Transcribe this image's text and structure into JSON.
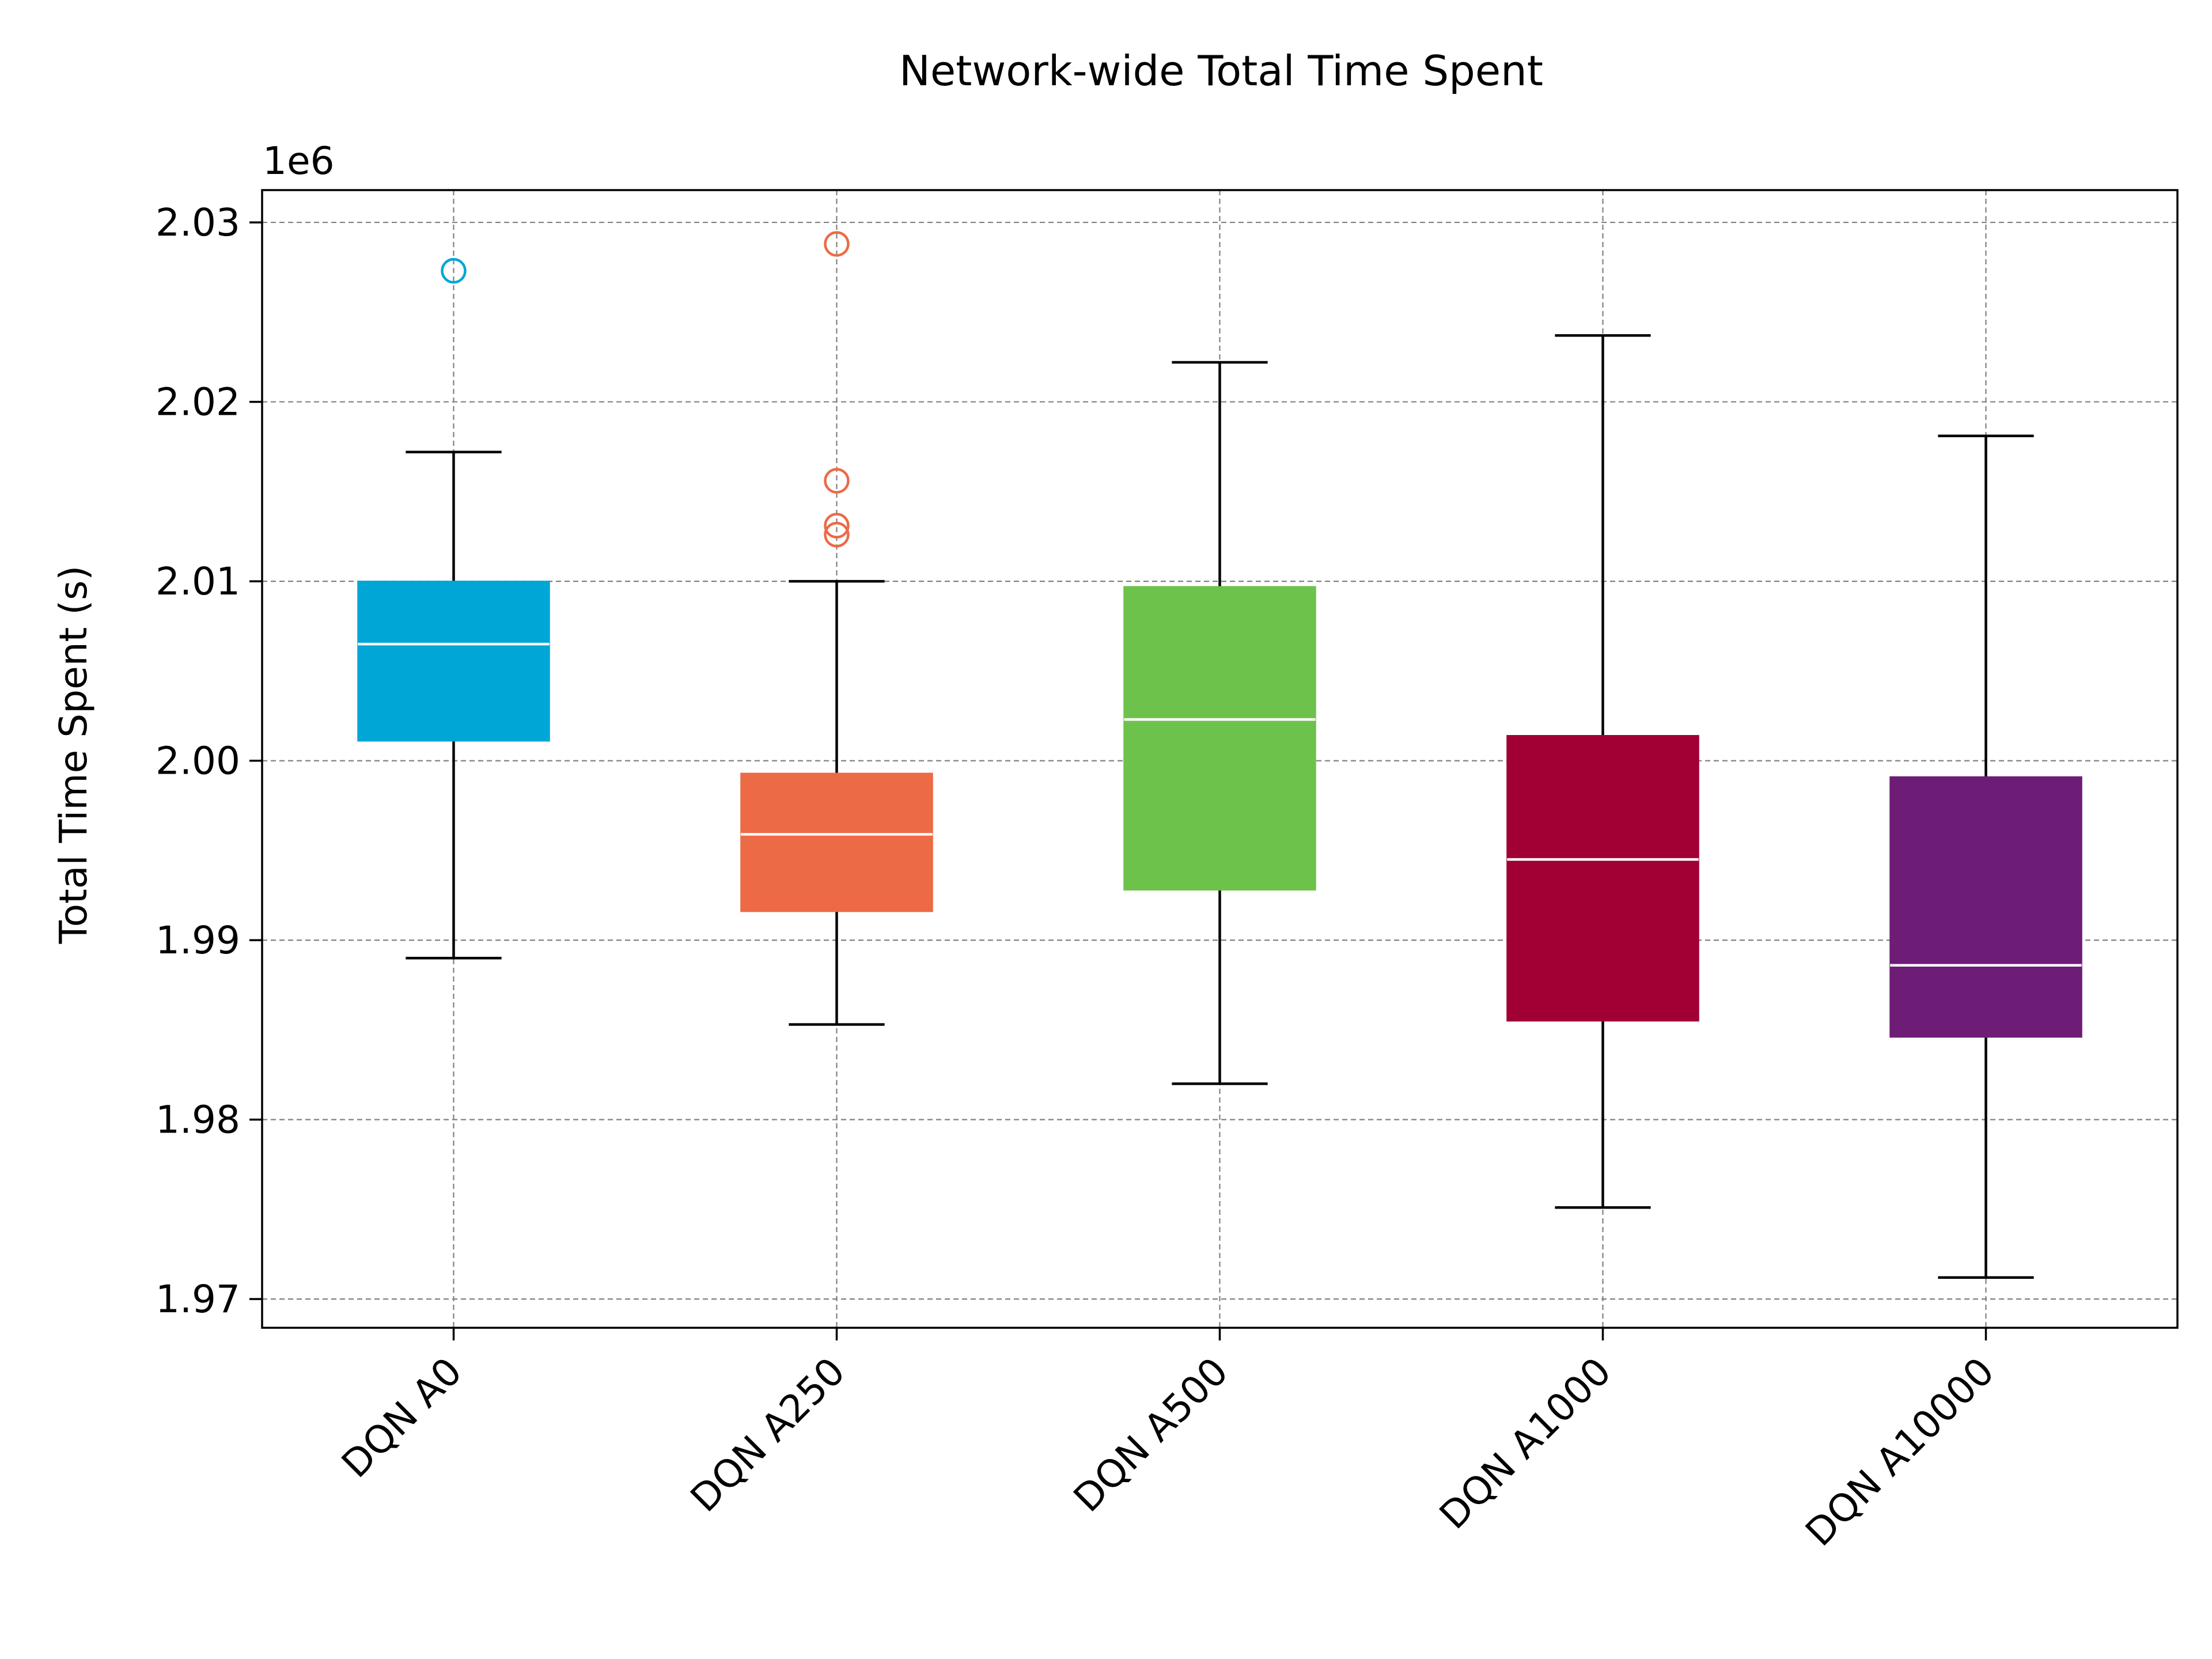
{
  "chart_data": {
    "type": "box",
    "title": "Network-wide Total Time Spent",
    "xlabel": "",
    "ylabel": "Total Time Spent (s)",
    "y_multiplier_label": "1e6",
    "y_scale": 1000000,
    "ylim": [
      1.9684,
      2.0318
    ],
    "yticks": [
      1.97,
      1.98,
      1.99,
      2.0,
      2.01,
      2.02,
      2.03
    ],
    "ytick_labels": [
      "1.97",
      "1.98",
      "1.99",
      "2.00",
      "2.01",
      "2.02",
      "2.03"
    ],
    "grid": true,
    "categories": [
      "DQN A0",
      "DQN A250",
      "DQN A500",
      "DQN A1000",
      "DQN A10000"
    ],
    "boxes": [
      {
        "color": "#00a6d6",
        "whisker_low": 1.989,
        "q1": 2.0011,
        "median": 2.0065,
        "q3": 2.01,
        "whisker_high": 2.0172,
        "outliers": [
          2.0273
        ]
      },
      {
        "color": "#ec6a46",
        "whisker_low": 1.9853,
        "q1": 1.9916,
        "median": 1.9959,
        "q3": 1.9993,
        "whisker_high": 2.01,
        "outliers": [
          2.0288,
          2.0156,
          2.0131,
          2.0126
        ]
      },
      {
        "color": "#6dc24b",
        "whisker_low": 1.982,
        "q1": 1.9928,
        "median": 2.0023,
        "q3": 2.0097,
        "whisker_high": 2.0222,
        "outliers": []
      },
      {
        "color": "#a00034",
        "whisker_low": 1.9751,
        "q1": 1.9855,
        "median": 1.9945,
        "q3": 2.0014,
        "whisker_high": 2.0237,
        "outliers": []
      },
      {
        "color": "#6e1d77",
        "whisker_low": 1.9712,
        "q1": 1.9846,
        "median": 1.9886,
        "q3": 1.9991,
        "whisker_high": 2.0181,
        "outliers": []
      }
    ]
  }
}
